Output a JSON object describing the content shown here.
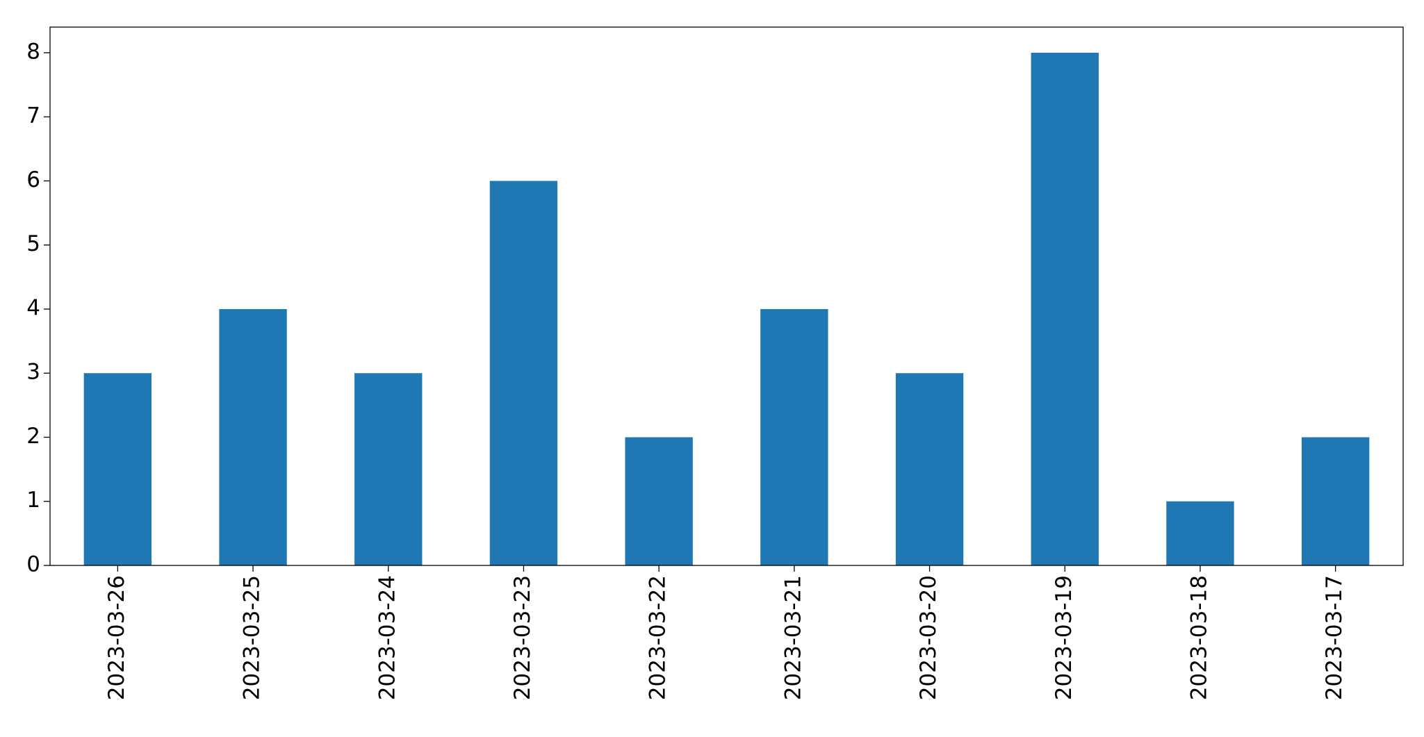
{
  "chart_data": {
    "type": "bar",
    "categories": [
      "2023-03-26",
      "2023-03-25",
      "2023-03-24",
      "2023-03-23",
      "2023-03-22",
      "2023-03-21",
      "2023-03-20",
      "2023-03-19",
      "2023-03-18",
      "2023-03-17"
    ],
    "values": [
      3,
      4,
      3,
      6,
      2,
      4,
      3,
      8,
      1,
      2
    ],
    "color": "#1f77b4",
    "ylim": [
      0,
      8.4
    ],
    "yticks": [
      0,
      1,
      2,
      3,
      4,
      5,
      6,
      7,
      8
    ],
    "grid": false
  }
}
